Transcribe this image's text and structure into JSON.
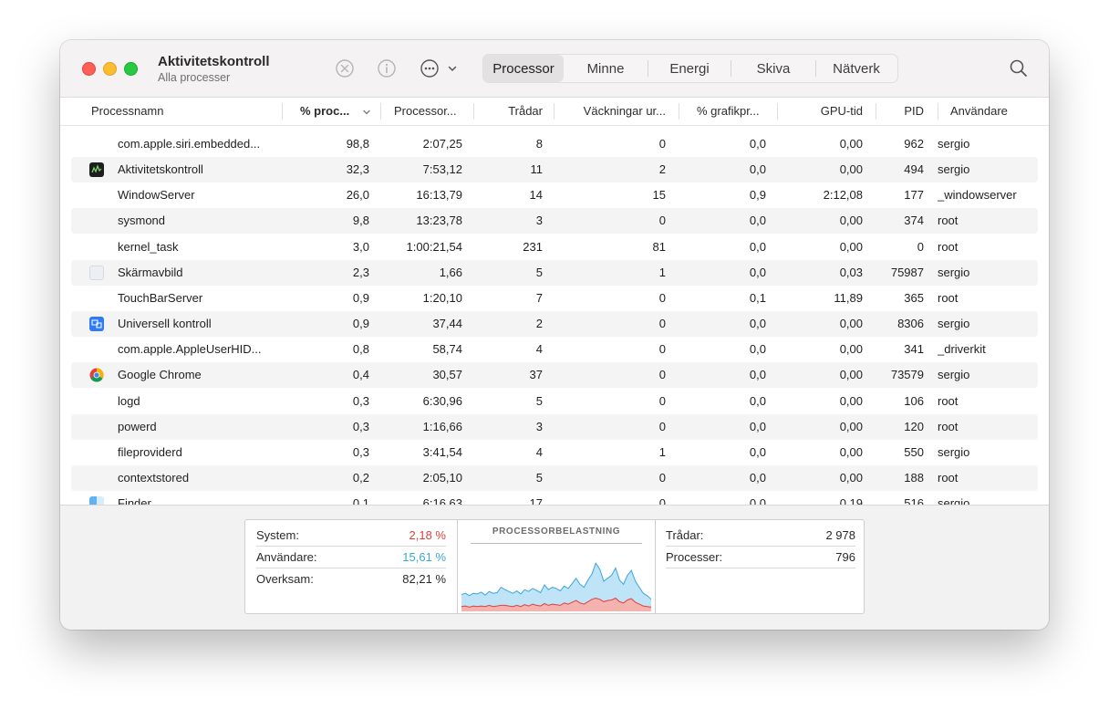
{
  "window": {
    "title": "Aktivitetskontroll",
    "subtitle": "Alla processer"
  },
  "toolbar": {
    "icons": [
      "stop-process-icon",
      "info-icon",
      "more-options-icon",
      "chevron-down-icon"
    ],
    "tabs": [
      {
        "label": "Processor",
        "active": true
      },
      {
        "label": "Minne",
        "active": false
      },
      {
        "label": "Energi",
        "active": false
      },
      {
        "label": "Skiva",
        "active": false
      },
      {
        "label": "Nätverk",
        "active": false
      }
    ],
    "search_icon": "magnifying-glass-icon"
  },
  "columns": [
    {
      "label": "Processnamn"
    },
    {
      "label": "% proc..."
    },
    {
      "label": "Processor..."
    },
    {
      "label": "Trådar"
    },
    {
      "label": "Väckningar ur..."
    },
    {
      "label": "% grafikpr..."
    },
    {
      "label": "GPU-tid"
    },
    {
      "label": "PID"
    },
    {
      "label": "Användare"
    }
  ],
  "sort": {
    "column": "% proc...",
    "direction": "descending"
  },
  "rows": [
    {
      "name": "com.apple.siri.embedded...",
      "icon": "",
      "cpu": "98,8",
      "time": "2:07,25",
      "threads": "8",
      "wakeups": "0",
      "gpu_pct": "0,0",
      "gpu_time": "0,00",
      "pid": "962",
      "user": "sergio"
    },
    {
      "name": "Aktivitetskontroll",
      "icon": "activity-monitor-icon",
      "cpu": "32,3",
      "time": "7:53,12",
      "threads": "11",
      "wakeups": "2",
      "gpu_pct": "0,0",
      "gpu_time": "0,00",
      "pid": "494",
      "user": "sergio"
    },
    {
      "name": "WindowServer",
      "icon": "",
      "cpu": "26,0",
      "time": "16:13,79",
      "threads": "14",
      "wakeups": "15",
      "gpu_pct": "0,9",
      "gpu_time": "2:12,08",
      "pid": "177",
      "user": "_windowserver"
    },
    {
      "name": "sysmond",
      "icon": "",
      "cpu": "9,8",
      "time": "13:23,78",
      "threads": "3",
      "wakeups": "0",
      "gpu_pct": "0,0",
      "gpu_time": "0,00",
      "pid": "374",
      "user": "root"
    },
    {
      "name": "kernel_task",
      "icon": "",
      "cpu": "3,0",
      "time": "1:00:21,54",
      "threads": "231",
      "wakeups": "81",
      "gpu_pct": "0,0",
      "gpu_time": "0,00",
      "pid": "0",
      "user": "root"
    },
    {
      "name": "Skärmavbild",
      "icon": "screenshot-icon",
      "cpu": "2,3",
      "time": "1,66",
      "threads": "5",
      "wakeups": "1",
      "gpu_pct": "0,0",
      "gpu_time": "0,03",
      "pid": "75987",
      "user": "sergio"
    },
    {
      "name": "TouchBarServer",
      "icon": "",
      "cpu": "0,9",
      "time": "1:20,10",
      "threads": "7",
      "wakeups": "0",
      "gpu_pct": "0,1",
      "gpu_time": "11,89",
      "pid": "365",
      "user": "root"
    },
    {
      "name": "Universell kontroll",
      "icon": "universal-control-icon",
      "cpu": "0,9",
      "time": "37,44",
      "threads": "2",
      "wakeups": "0",
      "gpu_pct": "0,0",
      "gpu_time": "0,00",
      "pid": "8306",
      "user": "sergio"
    },
    {
      "name": "com.apple.AppleUserHID...",
      "icon": "",
      "cpu": "0,8",
      "time": "58,74",
      "threads": "4",
      "wakeups": "0",
      "gpu_pct": "0,0",
      "gpu_time": "0,00",
      "pid": "341",
      "user": "_driverkit"
    },
    {
      "name": "Google Chrome",
      "icon": "chrome-icon",
      "cpu": "0,4",
      "time": "30,57",
      "threads": "37",
      "wakeups": "0",
      "gpu_pct": "0,0",
      "gpu_time": "0,00",
      "pid": "73579",
      "user": "sergio"
    },
    {
      "name": "logd",
      "icon": "",
      "cpu": "0,3",
      "time": "6:30,96",
      "threads": "5",
      "wakeups": "0",
      "gpu_pct": "0,0",
      "gpu_time": "0,00",
      "pid": "106",
      "user": "root"
    },
    {
      "name": "powerd",
      "icon": "",
      "cpu": "0,3",
      "time": "1:16,66",
      "threads": "3",
      "wakeups": "0",
      "gpu_pct": "0,0",
      "gpu_time": "0,00",
      "pid": "120",
      "user": "root"
    },
    {
      "name": "fileproviderd",
      "icon": "",
      "cpu": "0,3",
      "time": "3:41,54",
      "threads": "4",
      "wakeups": "1",
      "gpu_pct": "0,0",
      "gpu_time": "0,00",
      "pid": "550",
      "user": "sergio"
    },
    {
      "name": "contextstored",
      "icon": "",
      "cpu": "0,2",
      "time": "2:05,10",
      "threads": "5",
      "wakeups": "0",
      "gpu_pct": "0,0",
      "gpu_time": "0,00",
      "pid": "188",
      "user": "root"
    },
    {
      "name": "Finder",
      "icon": "finder-icon",
      "cpu": "0,1",
      "time": "6:16,63",
      "threads": "17",
      "wakeups": "0",
      "gpu_pct": "0,0",
      "gpu_time": "0,19",
      "pid": "516",
      "user": "sergio"
    }
  ],
  "summary": {
    "system_label": "System:",
    "system_value": "2,18 %",
    "user_label": "Användare:",
    "user_value": "15,61 %",
    "idle_label": "Overksam:",
    "idle_value": "82,21 %",
    "chart_title": "PROCESSORBELASTNING",
    "threads_label": "Trådar:",
    "threads_value": "2 978",
    "processes_label": "Processer:",
    "processes_value": "796"
  },
  "colors": {
    "system": "#e0403a",
    "user": "#3aa6dd",
    "close": "#fe5f57",
    "minimize": "#febc2e",
    "maximize": "#28c840"
  },
  "load_history": {
    "user": [
      0.28,
      0.3,
      0.26,
      0.3,
      0.29,
      0.32,
      0.27,
      0.33,
      0.3,
      0.31,
      0.4,
      0.36,
      0.33,
      0.3,
      0.34,
      0.29,
      0.36,
      0.33,
      0.38,
      0.35,
      0.31,
      0.44,
      0.36,
      0.4,
      0.38,
      0.34,
      0.42,
      0.38,
      0.46,
      0.55,
      0.45,
      0.4,
      0.52,
      0.62,
      0.8,
      0.7,
      0.5,
      0.55,
      0.6,
      0.72,
      0.52,
      0.45,
      0.6,
      0.68,
      0.5,
      0.4,
      0.3,
      0.26,
      0.2
    ],
    "system": [
      0.08,
      0.09,
      0.07,
      0.09,
      0.08,
      0.09,
      0.08,
      0.1,
      0.08,
      0.09,
      0.1,
      0.1,
      0.09,
      0.08,
      0.1,
      0.08,
      0.11,
      0.09,
      0.12,
      0.1,
      0.09,
      0.13,
      0.1,
      0.12,
      0.11,
      0.1,
      0.14,
      0.12,
      0.15,
      0.18,
      0.14,
      0.12,
      0.16,
      0.2,
      0.22,
      0.2,
      0.16,
      0.18,
      0.19,
      0.22,
      0.16,
      0.14,
      0.19,
      0.21,
      0.15,
      0.12,
      0.09,
      0.08,
      0.07
    ]
  }
}
